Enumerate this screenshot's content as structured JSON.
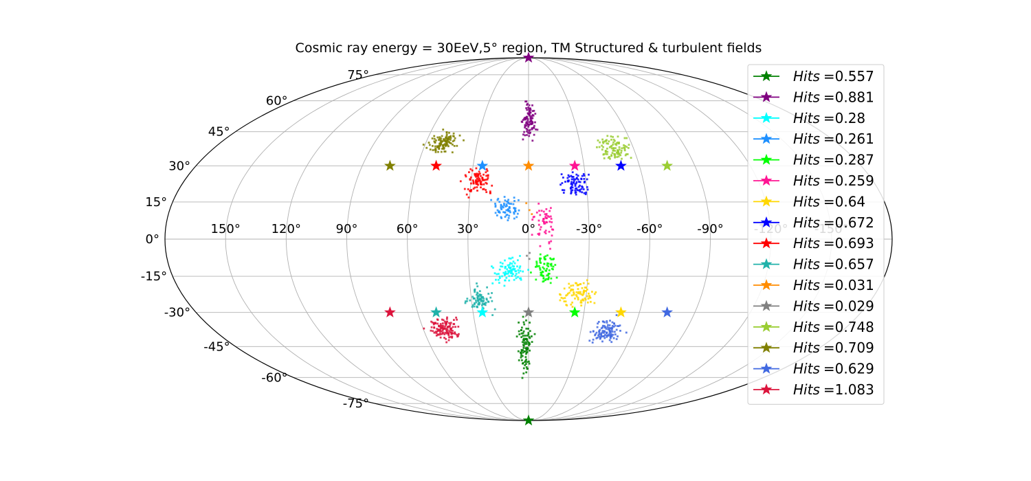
{
  "chart_data": {
    "type": "scatter",
    "projection": "mollweide",
    "title": "Cosmic ray energy = 30EeV,5° region, TM Structured & turbulent fields",
    "lon_ticks": [
      150,
      120,
      90,
      60,
      30,
      0,
      -30,
      -60,
      -90,
      -120,
      -150
    ],
    "lon_tick_labels": [
      "150°",
      "120°",
      "90°",
      "60°",
      "30°",
      "0°",
      "-30°",
      "-60°",
      "-90°",
      "-120°",
      "-150°"
    ],
    "lat_ticks": [
      75,
      60,
      45,
      30,
      15,
      0,
      -15,
      -30,
      -45,
      -60,
      -75
    ],
    "lat_tick_labels": [
      "75°",
      "60°",
      "45°",
      "30°",
      "15°",
      "0°",
      "-15°",
      "-30°",
      "-45°",
      "-60°",
      "-75°"
    ],
    "grid": true,
    "legend_position": "right",
    "legend_prefix": "Hits",
    "series": [
      {
        "name": "=0.557",
        "color": "#008000",
        "source": [
          0,
          -90
        ],
        "cluster": {
          "lon": 2,
          "lat": -45,
          "dlon": 7,
          "dlat": 20,
          "n": 95
        }
      },
      {
        "name": "=0.881",
        "color": "#800080",
        "source": [
          0,
          90
        ],
        "cluster": {
          "lon": 0,
          "lat": 50,
          "dlon": 7,
          "dlat": 13,
          "n": 95
        }
      },
      {
        "name": "=0.28",
        "color": "#00ffff",
        "source": [
          25,
          -30
        ],
        "cluster": {
          "lon": 10,
          "lat": -13,
          "dlon": 13,
          "dlat": 8,
          "n": 85
        }
      },
      {
        "name": "=0.261",
        "color": "#1e90ff",
        "source": [
          25,
          30
        ],
        "cluster": {
          "lon": 10,
          "lat": 12,
          "dlon": 12,
          "dlat": 8,
          "n": 70
        }
      },
      {
        "name": "=0.287",
        "color": "#00ff00",
        "source": [
          -25,
          -30
        ],
        "cluster": {
          "lon": -8,
          "lat": -12,
          "dlon": 9,
          "dlat": 10,
          "n": 70
        }
      },
      {
        "name": "=0.259",
        "color": "#ff1493",
        "source": [
          -25,
          30
        ],
        "cluster": {
          "lon": -8,
          "lat": 6,
          "dlon": 9,
          "dlat": 14,
          "n": 55
        }
      },
      {
        "name": "=0.64",
        "color": "#ffd700",
        "source": [
          -50,
          -30
        ],
        "cluster": {
          "lon": -25,
          "lat": -22,
          "dlon": 13,
          "dlat": 10,
          "n": 85
        }
      },
      {
        "name": "=0.672",
        "color": "#0000ff",
        "source": [
          -50,
          30
        ],
        "cluster": {
          "lon": -24,
          "lat": 22,
          "dlon": 13,
          "dlat": 9,
          "n": 80
        }
      },
      {
        "name": "=0.693",
        "color": "#ff0000",
        "source": [
          50,
          30
        ],
        "cluster": {
          "lon": 26,
          "lat": 24,
          "dlon": 12,
          "dlat": 9,
          "n": 90
        }
      },
      {
        "name": "=0.657",
        "color": "#20b2aa",
        "source": [
          50,
          -30
        ],
        "cluster": {
          "lon": 26,
          "lat": -25,
          "dlon": 12,
          "dlat": 8,
          "n": 80
        }
      },
      {
        "name": "=0.031",
        "color": "#ff8c00",
        "source": [
          0,
          30
        ],
        "cluster": {
          "lon": 0,
          "lat": 12,
          "dlon": 3,
          "dlat": 5,
          "n": 3
        }
      },
      {
        "name": "=0.029",
        "color": "#808080",
        "source": [
          0,
          -30
        ],
        "cluster": {
          "lon": 0,
          "lat": -8,
          "dlon": 3,
          "dlat": 5,
          "n": 3
        }
      },
      {
        "name": "=0.748",
        "color": "#9acd32",
        "source": [
          -75,
          30
        ],
        "cluster": {
          "lon": -48,
          "lat": 38,
          "dlon": 14,
          "dlat": 8,
          "n": 100
        }
      },
      {
        "name": "=0.709",
        "color": "#808000",
        "source": [
          75,
          30
        ],
        "cluster": {
          "lon": 49,
          "lat": 40,
          "dlon": 14,
          "dlat": 8,
          "n": 110
        }
      },
      {
        "name": "=0.629",
        "color": "#4169e1",
        "source": [
          -75,
          -30
        ],
        "cluster": {
          "lon": -45,
          "lat": -38,
          "dlon": 14,
          "dlat": 8,
          "n": 105
        }
      },
      {
        "name": "=1.083",
        "color": "#dc143c",
        "source": [
          75,
          -30
        ],
        "cluster": {
          "lon": 48,
          "lat": -37,
          "dlon": 14,
          "dlat": 8,
          "n": 125
        }
      }
    ]
  }
}
